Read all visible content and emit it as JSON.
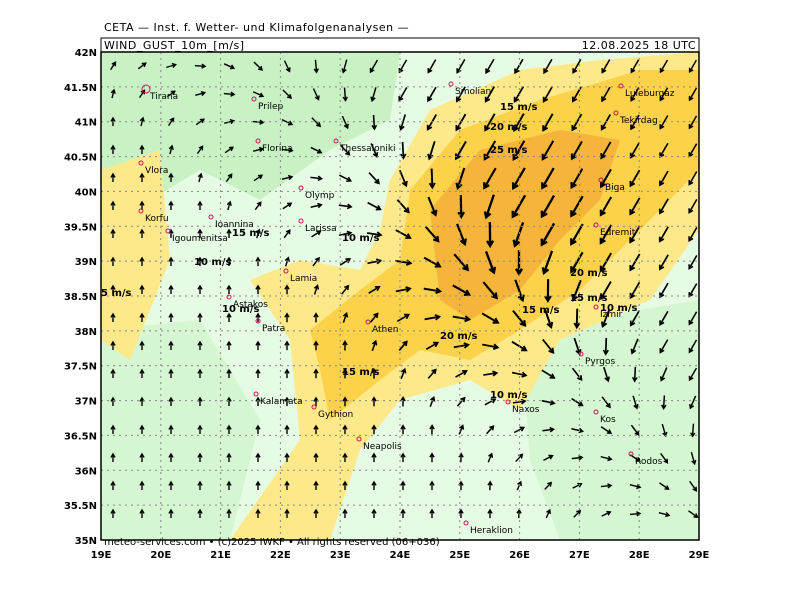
{
  "header": {
    "institute": "CETA — Inst. f. Wetter- und Klimafolgenanalysen —",
    "parameter": "WIND_GUST_10m_[m/s]",
    "valid_time": "12.08.2025 18 UTC"
  },
  "map": {
    "lat_labels": [
      "42N",
      "41.5N",
      "41N",
      "40.5N",
      "40N",
      "39.5N",
      "39N",
      "38.5N",
      "38N",
      "37.5N",
      "37N",
      "36.5N",
      "36N",
      "35.5N",
      "35N"
    ],
    "lon_labels": [
      "19E",
      "20E",
      "21E",
      "22E",
      "23E",
      "24E",
      "25E",
      "26E",
      "27E",
      "28E",
      "29E"
    ],
    "cities": [
      "Tirana",
      "Prilep",
      "Smolian",
      "Luleburgaz",
      "Tekirdag",
      "Florina",
      "Thessaloniki",
      "Vlora",
      "Olymp",
      "Biga",
      "Korfu",
      "Ioannina",
      "Igoumenitsa",
      "Larissa",
      "Edremit",
      "Lamia",
      "Astakos",
      "Patra",
      "Athen",
      "Izmir",
      "Pyrgos",
      "Kalamata",
      "Gythion",
      "Naxos",
      "Kos",
      "Neapolis",
      "Rodos",
      "Heraklion"
    ],
    "contour_labels": [
      "15 m/s",
      "20 m/s",
      "25 m/s",
      "15 m/s",
      "10 m/s",
      "10 m/s",
      "20 m/s",
      "5 m/s",
      "15 m/s",
      "10 m/s",
      "15 m/s",
      "10 m/s",
      "20 m/s",
      "15 m/s",
      "10 m/s"
    ]
  },
  "footer": "meteo-services.com • (c)2025 IWKF • All rights reserved (06+036)"
}
